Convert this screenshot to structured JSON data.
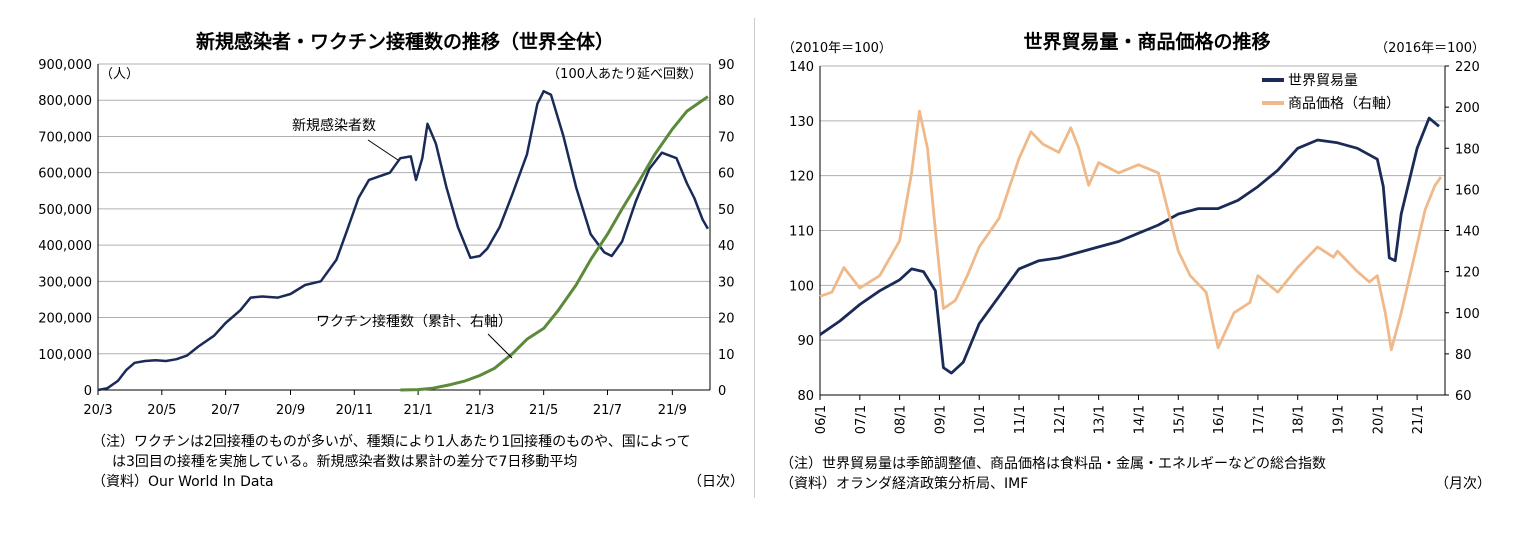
{
  "left": {
    "chart_data": {
      "type": "line",
      "title": "新規感染者・ワクチン接種数の推移（世界全体）",
      "y_left_unit": "（人）",
      "y_right_unit": "（100人あたり延べ回数）",
      "x_unit": "（日次）",
      "x_ticks": [
        "20/3",
        "20/5",
        "20/7",
        "20/9",
        "20/11",
        "21/1",
        "21/3",
        "21/5",
        "21/7",
        "21/9"
      ],
      "y_left_ticks": [
        "0",
        "100,000",
        "200,000",
        "300,000",
        "400,000",
        "500,000",
        "600,000",
        "700,000",
        "800,000",
        "900,000"
      ],
      "y_right_ticks": [
        "0",
        "10",
        "20",
        "30",
        "40",
        "50",
        "60",
        "70",
        "80",
        "90"
      ],
      "ylim_left": [
        0,
        900000
      ],
      "ylim_right": [
        0,
        90
      ],
      "grid": true,
      "series": [
        {
          "name": "新規感染者数",
          "axis": "left",
          "color": "#1a2b57",
          "points": [
            [
              "2020-03-01",
              0
            ],
            [
              "2020-03-10",
              5000
            ],
            [
              "2020-03-20",
              25000
            ],
            [
              "2020-03-28",
              55000
            ],
            [
              "2020-04-05",
              75000
            ],
            [
              "2020-04-15",
              80000
            ],
            [
              "2020-04-25",
              82000
            ],
            [
              "2020-05-05",
              80000
            ],
            [
              "2020-05-15",
              85000
            ],
            [
              "2020-05-25",
              95000
            ],
            [
              "2020-06-05",
              120000
            ],
            [
              "2020-06-20",
              150000
            ],
            [
              "2020-07-01",
              185000
            ],
            [
              "2020-07-15",
              220000
            ],
            [
              "2020-07-25",
              255000
            ],
            [
              "2020-08-05",
              258000
            ],
            [
              "2020-08-20",
              255000
            ],
            [
              "2020-09-01",
              265000
            ],
            [
              "2020-09-15",
              290000
            ],
            [
              "2020-09-30",
              300000
            ],
            [
              "2020-10-15",
              360000
            ],
            [
              "2020-10-25",
              440000
            ],
            [
              "2020-11-05",
              530000
            ],
            [
              "2020-11-15",
              580000
            ],
            [
              "2020-11-25",
              590000
            ],
            [
              "2020-12-05",
              600000
            ],
            [
              "2020-12-15",
              640000
            ],
            [
              "2020-12-25",
              645000
            ],
            [
              "2020-12-30",
              580000
            ],
            [
              "2021-01-05",
              640000
            ],
            [
              "2021-01-10",
              735000
            ],
            [
              "2021-01-18",
              680000
            ],
            [
              "2021-01-28",
              560000
            ],
            [
              "2021-02-08",
              450000
            ],
            [
              "2021-02-20",
              365000
            ],
            [
              "2021-03-01",
              370000
            ],
            [
              "2021-03-08",
              390000
            ],
            [
              "2021-03-20",
              450000
            ],
            [
              "2021-04-01",
              540000
            ],
            [
              "2021-04-15",
              650000
            ],
            [
              "2021-04-25",
              790000
            ],
            [
              "2021-05-01",
              825000
            ],
            [
              "2021-05-08",
              815000
            ],
            [
              "2021-05-20",
              700000
            ],
            [
              "2021-06-01",
              560000
            ],
            [
              "2021-06-15",
              430000
            ],
            [
              "2021-06-28",
              380000
            ],
            [
              "2021-07-05",
              370000
            ],
            [
              "2021-07-15",
              410000
            ],
            [
              "2021-07-28",
              520000
            ],
            [
              "2021-08-10",
              610000
            ],
            [
              "2021-08-22",
              655000
            ],
            [
              "2021-09-05",
              640000
            ],
            [
              "2021-09-15",
              570000
            ],
            [
              "2021-09-22",
              530000
            ],
            [
              "2021-09-30",
              470000
            ],
            [
              "2021-10-05",
              445000
            ]
          ]
        },
        {
          "name": "ワクチン接種数（累計、右軸）",
          "axis": "right",
          "color": "#5b8a3a",
          "points": [
            [
              "2020-12-15",
              0
            ],
            [
              "2021-01-01",
              0.1
            ],
            [
              "2021-01-15",
              0.5
            ],
            [
              "2021-02-01",
              1.5
            ],
            [
              "2021-02-15",
              2.5
            ],
            [
              "2021-03-01",
              4
            ],
            [
              "2021-03-15",
              6
            ],
            [
              "2021-04-01",
              10
            ],
            [
              "2021-04-15",
              14
            ],
            [
              "2021-05-01",
              17
            ],
            [
              "2021-05-15",
              22
            ],
            [
              "2021-06-01",
              29
            ],
            [
              "2021-06-15",
              36
            ],
            [
              "2021-07-01",
              43
            ],
            [
              "2021-07-15",
              50
            ],
            [
              "2021-08-01",
              58
            ],
            [
              "2021-08-15",
              65
            ],
            [
              "2021-09-01",
              72
            ],
            [
              "2021-09-15",
              77
            ],
            [
              "2021-10-05",
              81
            ]
          ]
        }
      ]
    },
    "notes": {
      "line1": "（注）ワクチンは2回接種のものが多いが、種類により1人あたり1回接種のものや、国によって",
      "line2": "は3回目の接種を実施している。新規感染者数は累計の差分で7日移動平均",
      "source": "（資料）Our World In Data"
    }
  },
  "right": {
    "chart_data": {
      "type": "line",
      "title": "世界貿易量・商品価格の推移",
      "y_left_unit": "（2010年＝100）",
      "y_right_unit": "（2016年＝100）",
      "x_unit": "（月次）",
      "x_ticks": [
        "06/1",
        "07/1",
        "08/1",
        "09/1",
        "10/1",
        "11/1",
        "12/1",
        "13/1",
        "14/1",
        "15/1",
        "16/1",
        "17/1",
        "18/1",
        "19/1",
        "20/1",
        "21/1"
      ],
      "y_left_ticks": [
        "80",
        "90",
        "100",
        "110",
        "120",
        "130",
        "140"
      ],
      "y_right_ticks": [
        "60",
        "80",
        "100",
        "120",
        "140",
        "160",
        "180",
        "200",
        "220"
      ],
      "ylim_left": [
        80,
        140
      ],
      "ylim_right": [
        60,
        220
      ],
      "legend_position": "top-right",
      "grid": true,
      "series": [
        {
          "name": "世界貿易量",
          "axis": "left",
          "color": "#1a2b57",
          "points": [
            [
              2006.0,
              91
            ],
            [
              2006.5,
              93.5
            ],
            [
              2007.0,
              96.5
            ],
            [
              2007.5,
              99
            ],
            [
              2008.0,
              101
            ],
            [
              2008.3,
              103
            ],
            [
              2008.6,
              102.5
            ],
            [
              2008.9,
              99
            ],
            [
              2009.1,
              85
            ],
            [
              2009.3,
              84
            ],
            [
              2009.6,
              86
            ],
            [
              2010.0,
              93
            ],
            [
              2010.5,
              98
            ],
            [
              2011.0,
              103
            ],
            [
              2011.5,
              104.5
            ],
            [
              2012.0,
              105
            ],
            [
              2012.5,
              106
            ],
            [
              2013.0,
              107
            ],
            [
              2013.5,
              108
            ],
            [
              2014.0,
              109.5
            ],
            [
              2014.5,
              111
            ],
            [
              2015.0,
              113
            ],
            [
              2015.5,
              114
            ],
            [
              2016.0,
              114
            ],
            [
              2016.5,
              115.5
            ],
            [
              2017.0,
              118
            ],
            [
              2017.5,
              121
            ],
            [
              2018.0,
              125
            ],
            [
              2018.5,
              126.5
            ],
            [
              2019.0,
              126
            ],
            [
              2019.5,
              125
            ],
            [
              2020.0,
              123
            ],
            [
              2020.15,
              118
            ],
            [
              2020.3,
              105
            ],
            [
              2020.45,
              104.5
            ],
            [
              2020.6,
              113
            ],
            [
              2021.0,
              125
            ],
            [
              2021.3,
              130.5
            ],
            [
              2021.55,
              129
            ]
          ]
        },
        {
          "name": "商品価格（右軸）",
          "axis": "right",
          "color": "#f0b98a",
          "points": [
            [
              2006.0,
              108
            ],
            [
              2006.3,
              110
            ],
            [
              2006.6,
              122
            ],
            [
              2007.0,
              112
            ],
            [
              2007.5,
              118
            ],
            [
              2008.0,
              135
            ],
            [
              2008.3,
              168
            ],
            [
              2008.5,
              198
            ],
            [
              2008.7,
              180
            ],
            [
              2008.9,
              140
            ],
            [
              2009.1,
              102
            ],
            [
              2009.4,
              106
            ],
            [
              2009.7,
              118
            ],
            [
              2010.0,
              132
            ],
            [
              2010.5,
              146
            ],
            [
              2011.0,
              175
            ],
            [
              2011.3,
              188
            ],
            [
              2011.6,
              182
            ],
            [
              2012.0,
              178
            ],
            [
              2012.3,
              190
            ],
            [
              2012.5,
              180
            ],
            [
              2012.75,
              162
            ],
            [
              2013.0,
              173
            ],
            [
              2013.5,
              168
            ],
            [
              2014.0,
              172
            ],
            [
              2014.5,
              168
            ],
            [
              2015.0,
              130
            ],
            [
              2015.3,
              118
            ],
            [
              2015.7,
              110
            ],
            [
              2016.0,
              83
            ],
            [
              2016.4,
              100
            ],
            [
              2016.8,
              105
            ],
            [
              2017.0,
              118
            ],
            [
              2017.5,
              110
            ],
            [
              2018.0,
              122
            ],
            [
              2018.5,
              132
            ],
            [
              2018.9,
              127
            ],
            [
              2019.0,
              130
            ],
            [
              2019.5,
              120
            ],
            [
              2019.8,
              115
            ],
            [
              2020.0,
              118
            ],
            [
              2020.2,
              100
            ],
            [
              2020.35,
              82
            ],
            [
              2020.6,
              100
            ],
            [
              2020.9,
              125
            ],
            [
              2021.2,
              150
            ],
            [
              2021.45,
              162
            ],
            [
              2021.6,
              166
            ]
          ]
        }
      ]
    },
    "notes": {
      "line1": "（注）世界貿易量は季節調整値、商品価格は食料品・金属・エネルギーなどの総合指数",
      "source": "（資料）オランダ経済政策分析局、IMF"
    }
  }
}
